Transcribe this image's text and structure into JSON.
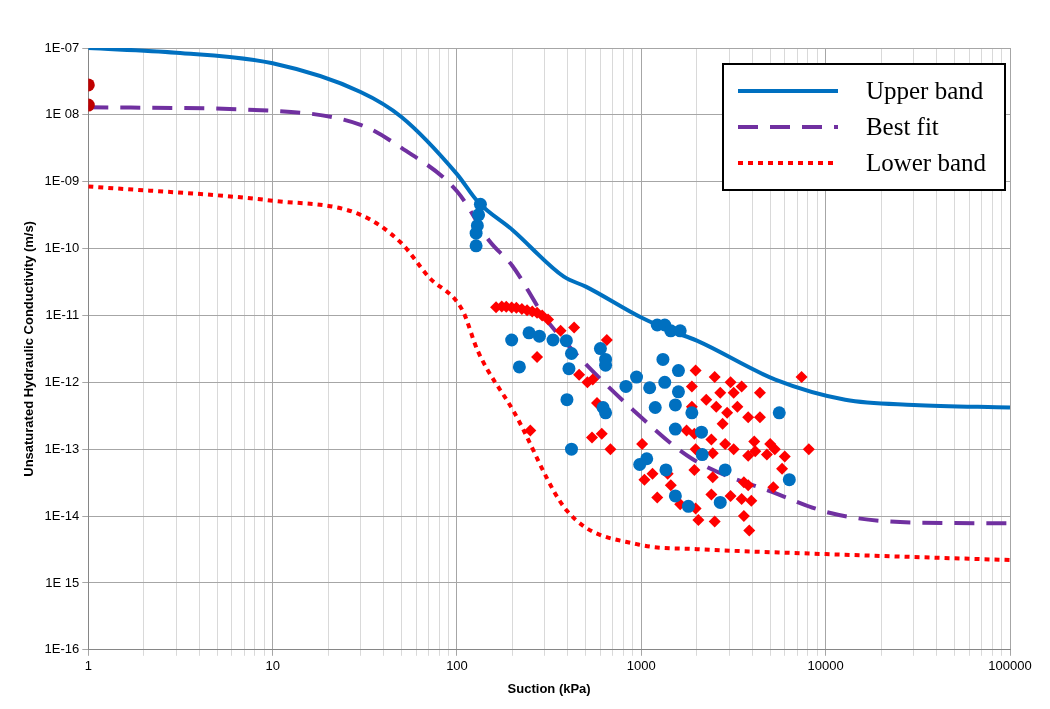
{
  "chart_data": {
    "type": "scatter",
    "xlabel": "Suction (kPa)",
    "ylabel": "Unsaturated Hydraulic Conductivity (m/s)",
    "xlim": [
      1,
      100000
    ],
    "ylim": [
      1e-16,
      1e-07
    ],
    "xticks": [
      1,
      {
        "value": 2,
        "label": null
      },
      {
        "value": 3,
        "label": null
      },
      {
        "value": 4,
        "label": null
      },
      {
        "value": 5,
        "label": null
      },
      {
        "value": 6,
        "label": null
      },
      {
        "value": 7,
        "label": null
      },
      {
        "value": 8,
        "label": null
      },
      {
        "value": 9,
        "label": null
      },
      10,
      {
        "value": 20,
        "label": null
      },
      {
        "value": 30,
        "label": null
      },
      {
        "value": 40,
        "label": null
      },
      {
        "value": 50,
        "label": null
      },
      {
        "value": 60,
        "label": null
      },
      {
        "value": 70,
        "label": null
      },
      {
        "value": 80,
        "label": null
      },
      {
        "value": 90,
        "label": null
      },
      100,
      {
        "value": 200,
        "label": null
      },
      {
        "value": 300,
        "label": null
      },
      {
        "value": 400,
        "label": null
      },
      {
        "value": 500,
        "label": null
      },
      {
        "value": 600,
        "label": null
      },
      {
        "value": 700,
        "label": null
      },
      {
        "value": 800,
        "label": null
      },
      {
        "value": 900,
        "label": null
      },
      1000,
      {
        "value": 2000,
        "label": null
      },
      {
        "value": 3000,
        "label": null
      },
      {
        "value": 4000,
        "label": null
      },
      {
        "value": 5000,
        "label": null
      },
      {
        "value": 6000,
        "label": null
      },
      {
        "value": 7000,
        "label": null
      },
      {
        "value": 8000,
        "label": null
      },
      {
        "value": 9000,
        "label": null
      },
      10000,
      {
        "value": 20000,
        "label": null
      },
      {
        "value": 30000,
        "label": null
      },
      {
        "value": 40000,
        "label": null
      },
      {
        "value": 50000,
        "label": null
      },
      {
        "value": 60000,
        "label": null
      },
      {
        "value": 70000,
        "label": null
      },
      {
        "value": 80000,
        "label": null
      },
      {
        "value": 90000,
        "label": null
      },
      100000
    ],
    "yticks": [
      {
        "value": 1e-16,
        "label": "1E-16"
      },
      {
        "value": 1e-15,
        "label": "1E 15"
      },
      {
        "value": 1e-14,
        "label": "1E-14"
      },
      {
        "value": 1e-13,
        "label": "1E-13"
      },
      {
        "value": 1e-12,
        "label": "1E-12"
      },
      {
        "value": 1e-11,
        "label": "1E-11"
      },
      {
        "value": 1e-10,
        "label": "1E-10"
      },
      {
        "value": 1e-09,
        "label": "1E-09"
      },
      {
        "value": 1e-08,
        "label": "1E 08"
      },
      {
        "value": 1e-07,
        "label": "1E-07"
      }
    ],
    "log": "xy",
    "grid": true,
    "legend": "top right",
    "series": [
      {
        "type": "line",
        "name": "Upper band",
        "color": "#0070c0",
        "line_style": "solid",
        "marker": "none",
        "x": [
          1,
          3,
          10,
          30,
          50,
          100,
          130,
          200,
          380,
          500,
          1000,
          1445,
          2000,
          5330,
          12770,
          30000,
          100000
        ],
        "values": [
          1e-07,
          8.5e-08,
          5.9e-08,
          2.2e-08,
          9.3e-09,
          1.3e-09,
          5e-10,
          1.9e-10,
          3.8e-11,
          2.7e-11,
          9.3e-12,
          5.9e-12,
          4.2e-12,
          1.1e-12,
          5.5e-13,
          4.6e-13,
          4.2e-13
        ]
      },
      {
        "type": "line",
        "name": "Best fit",
        "color": "#7030a0",
        "line_style": "dashed",
        "marker": "none",
        "x": [
          1,
          10,
          30,
          50,
          100,
          150,
          200,
          300,
          416,
          908,
          1884,
          5330,
          10763,
          30000,
          100000
        ],
        "values": [
          1.3e-08,
          1.15e-08,
          7.1e-09,
          3.2e-09,
          7.2e-10,
          1.3e-10,
          5.5e-11,
          9.3e-12,
          3.2e-12,
          3.8e-13,
          7.2e-14,
          2.2e-14,
          1.1e-14,
          8e-15,
          7.8e-15
        ]
      },
      {
        "type": "line",
        "name": "Lower band",
        "color": "#ff0000",
        "line_style": "dotted",
        "marker": "none",
        "x": [
          1,
          10,
          30,
          50,
          70,
          107,
          130,
          205,
          395,
          944,
          2010,
          10000,
          100000
        ],
        "values": [
          8.5e-10,
          5.2e-10,
          3.2e-10,
          1.2e-10,
          3.8e-11,
          1.2e-11,
          2.9e-12,
          3.5e-13,
          1.2e-14,
          3.8e-15,
          3.2e-15,
          2.7e-15,
          2.2e-15
        ]
      },
      {
        "color": "#c00000",
        "marker": "circle",
        "x": [
          1,
          1
        ],
        "values": [
          2.8e-08,
          1.4e-08
        ]
      },
      {
        "color": "#0070c0",
        "marker": "circle",
        "x": [
          134,
          131,
          129,
          127,
          127,
          198,
          218,
          246,
          280,
          332,
          392,
          418,
          405,
          395,
          418,
          600,
          640,
          640,
          640,
          620,
          825,
          942,
          1110,
          1190,
          1220,
          1340,
          1445,
          1625,
          1310,
          1340,
          1590,
          1530,
          1530,
          1590,
          1070,
          980,
          1360,
          1530,
          1800,
          2140,
          2120,
          2850,
          2680,
          5600,
          6350,
          1880
        ],
        "values": [
          4.6e-10,
          3.2e-10,
          2.2e-10,
          1.7e-10,
          1.1e-10,
          4.3e-12,
          1.7e-12,
          5.5e-12,
          4.9e-12,
          4.3e-12,
          4.2e-12,
          2.7e-12,
          1.6e-12,
          5.5e-13,
          1e-13,
          3.2e-12,
          2.2e-12,
          1.8e-12,
          3.5e-13,
          4.2e-13,
          8.7e-13,
          1.2e-12,
          8.3e-13,
          4.2e-13,
          7.2e-12,
          7.2e-12,
          5.9e-12,
          5.9e-12,
          2.2e-12,
          1e-12,
          1.5e-12,
          4.6e-13,
          2e-13,
          7.2e-13,
          7.2e-14,
          5.9e-14,
          4.9e-14,
          2e-14,
          1.4e-14,
          8.3e-14,
          1.8e-13,
          4.9e-14,
          1.6e-14,
          3.5e-13,
          3.5e-14,
          3.5e-13
        ]
      },
      {
        "color": "#ff0000",
        "marker": "diamond",
        "x": [
          163,
          175,
          185,
          198,
          210,
          225,
          240,
          256,
          272,
          290,
          312,
          365,
          432,
          650,
          272,
          460,
          510,
          545,
          575,
          250,
          540,
          610,
          680,
          1010,
          1150,
          1040,
          1390,
          1445,
          1220,
          1625,
          1970,
          2040,
          2500,
          3600,
          3850,
          1970,
          2500,
          3050,
          3500,
          1880,
          4400,
          1880,
          2250,
          2550,
          2920,
          3320,
          3800,
          2760,
          3170,
          2680,
          4400,
          1760,
          1940,
          1970,
          2400,
          2440,
          2850,
          3170,
          4100,
          3800,
          4150,
          5000,
          5300,
          4800,
          6000,
          5800,
          8100,
          7400,
          1940,
          2440,
          2400,
          3050,
          3500,
          3800,
          5200,
          3600,
          3950
        ],
        "values": [
          1.33e-11,
          1.36e-11,
          1.35e-11,
          1.32e-11,
          1.3e-11,
          1.25e-11,
          1.2e-11,
          1.15e-11,
          1.1e-11,
          1e-11,
          8.7e-12,
          5.9e-12,
          6.6e-12,
          4.3e-12,
          2.4e-12,
          1.3e-12,
          1e-12,
          1.1e-12,
          4.9e-13,
          1.9e-13,
          1.5e-13,
          1.7e-13,
          1e-13,
          1.2e-13,
          4.3e-14,
          3.5e-14,
          4.3e-14,
          2.9e-14,
          1.9e-14,
          1.5e-14,
          1.3e-14,
          8.7e-15,
          8.3e-15,
          1e-14,
          6.1e-15,
          1.5e-12,
          1.2e-12,
          1e-12,
          8.7e-13,
          8.7e-13,
          7e-13,
          4.3e-13,
          5.5e-13,
          4.3e-13,
          3.5e-13,
          4.3e-13,
          3e-13,
          2.4e-13,
          7e-13,
          7e-13,
          3e-13,
          1.9e-13,
          1.7e-13,
          1e-13,
          1.4e-13,
          8.7e-14,
          1.2e-13,
          1e-13,
          1.3e-13,
          8e-14,
          9.3e-14,
          1.2e-13,
          1e-13,
          8.3e-14,
          7.8e-14,
          5.1e-14,
          1e-13,
          1.2e-12,
          4.9e-14,
          3.8e-14,
          2.1e-14,
          2e-14,
          1.8e-14,
          2.9e-14,
          2.7e-14,
          3.2e-14,
          1.7e-14
        ]
      }
    ]
  }
}
